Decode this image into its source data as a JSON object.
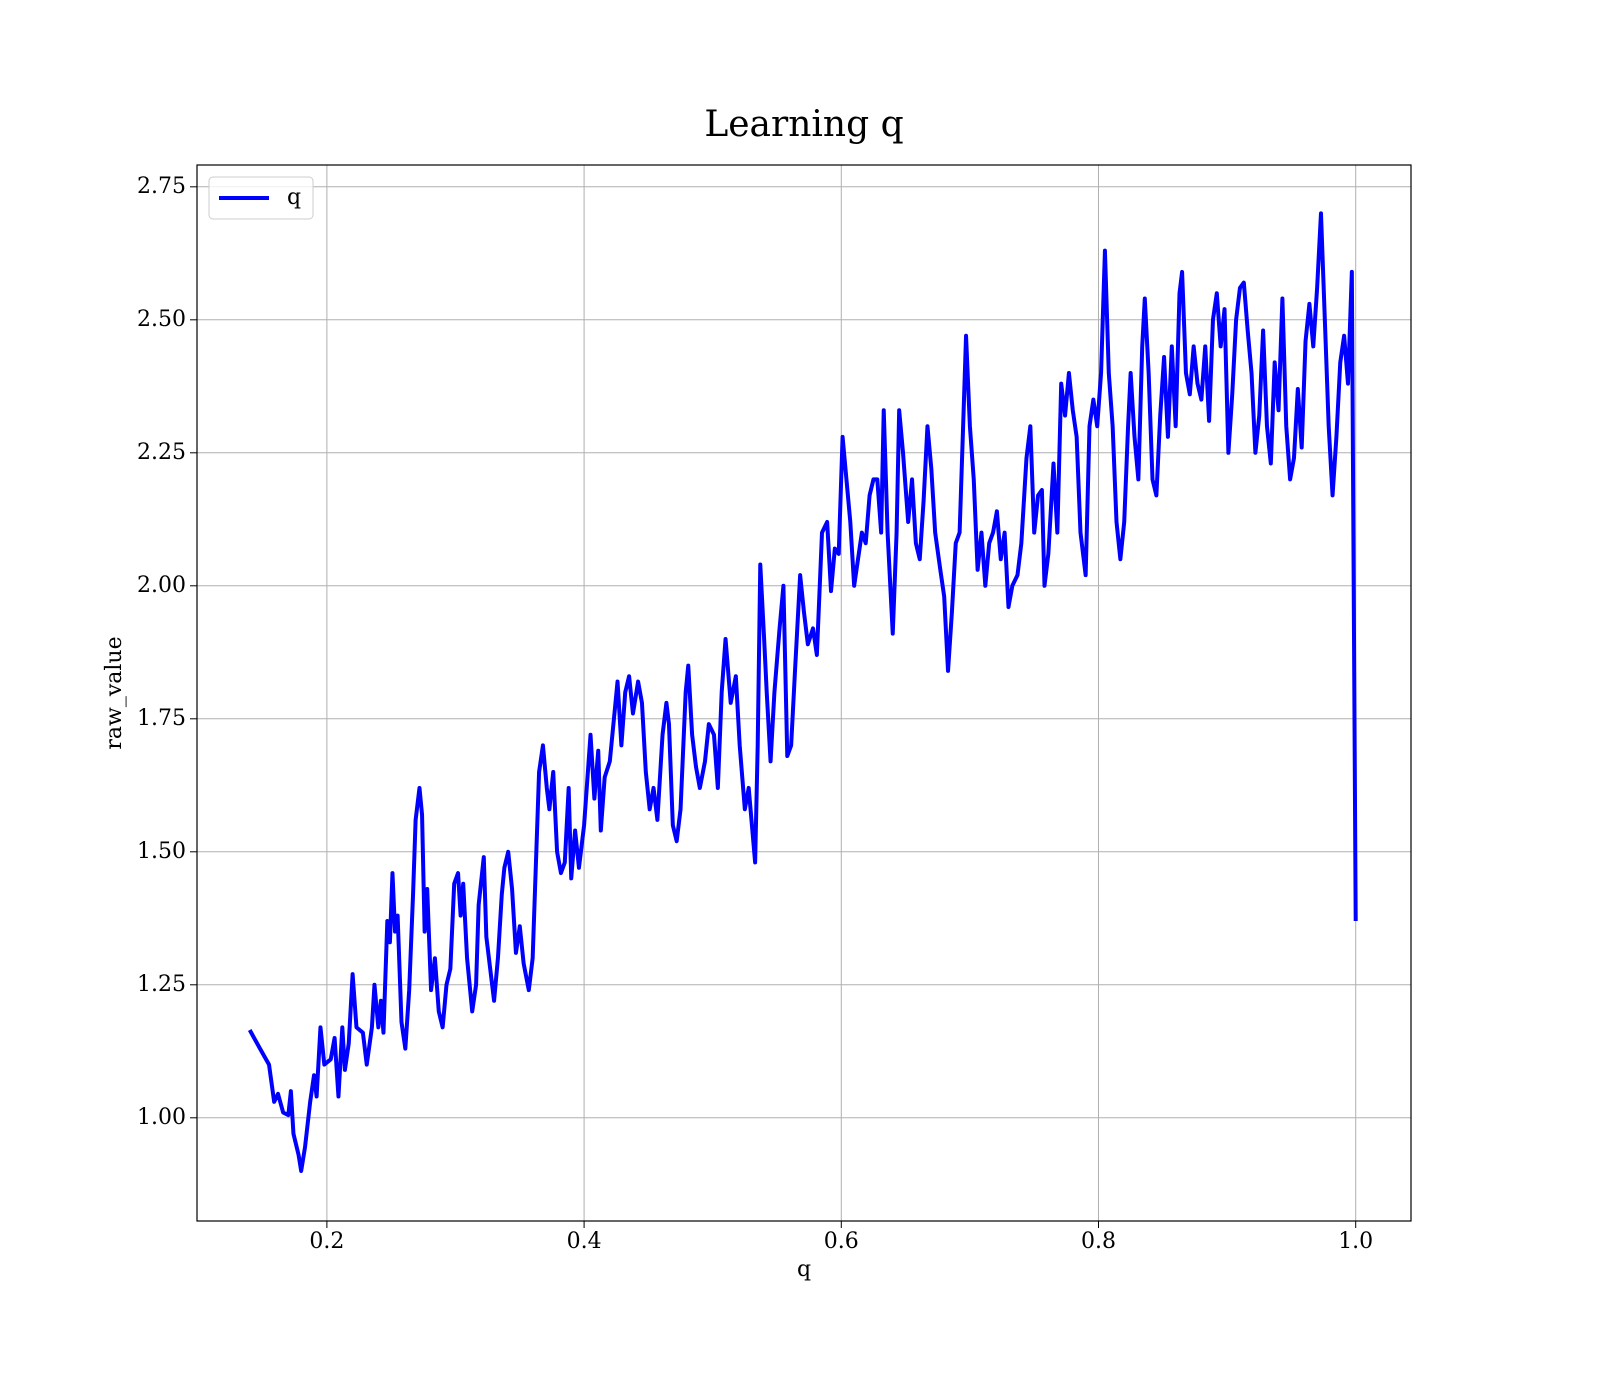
{
  "chart_data": {
    "type": "line",
    "title": "Learning q",
    "xlabel": "q",
    "ylabel": "raw_value",
    "x": [
      0.14,
      0.148,
      0.155,
      0.159,
      0.162,
      0.166,
      0.17,
      0.172,
      0.174,
      0.178,
      0.18,
      0.183,
      0.187,
      0.19,
      0.192,
      0.195,
      0.198,
      0.203,
      0.206,
      0.209,
      0.212,
      0.214,
      0.217,
      0.22,
      0.223,
      0.228,
      0.231,
      0.235,
      0.237,
      0.24,
      0.242,
      0.244,
      0.247,
      0.249,
      0.251,
      0.253,
      0.255,
      0.258,
      0.261,
      0.264,
      0.267,
      0.269,
      0.272,
      0.274,
      0.276,
      0.278,
      0.281,
      0.284,
      0.287,
      0.29,
      0.293,
      0.296,
      0.299,
      0.302,
      0.304,
      0.306,
      0.309,
      0.313,
      0.316,
      0.318,
      0.322,
      0.324,
      0.327,
      0.33,
      0.333,
      0.336,
      0.338,
      0.341,
      0.344,
      0.347,
      0.35,
      0.353,
      0.357,
      0.36,
      0.365,
      0.368,
      0.371,
      0.373,
      0.376,
      0.379,
      0.382,
      0.385,
      0.388,
      0.39,
      0.393,
      0.396,
      0.4,
      0.405,
      0.408,
      0.411,
      0.413,
      0.416,
      0.42,
      0.424,
      0.426,
      0.429,
      0.432,
      0.435,
      0.438,
      0.442,
      0.445,
      0.448,
      0.451,
      0.454,
      0.457,
      0.461,
      0.464,
      0.466,
      0.469,
      0.472,
      0.475,
      0.479,
      0.481,
      0.484,
      0.487,
      0.49,
      0.494,
      0.497,
      0.501,
      0.504,
      0.507,
      0.51,
      0.514,
      0.518,
      0.521,
      0.525,
      0.528,
      0.533,
      0.535,
      0.537,
      0.54,
      0.542,
      0.545,
      0.548,
      0.552,
      0.555,
      0.558,
      0.561,
      0.564,
      0.568,
      0.571,
      0.574,
      0.578,
      0.581,
      0.585,
      0.589,
      0.592,
      0.595,
      0.598,
      0.601,
      0.604,
      0.607,
      0.61,
      0.613,
      0.616,
      0.619,
      0.622,
      0.625,
      0.628,
      0.631,
      0.633,
      0.636,
      0.64,
      0.643,
      0.645,
      0.648,
      0.652,
      0.655,
      0.658,
      0.661,
      0.664,
      0.667,
      0.67,
      0.673,
      0.677,
      0.68,
      0.683,
      0.686,
      0.689,
      0.692,
      0.695,
      0.697,
      0.7,
      0.703,
      0.706,
      0.709,
      0.712,
      0.715,
      0.718,
      0.721,
      0.724,
      0.727,
      0.73,
      0.733,
      0.737,
      0.74,
      0.744,
      0.747,
      0.75,
      0.753,
      0.756,
      0.758,
      0.761,
      0.765,
      0.768,
      0.771,
      0.774,
      0.777,
      0.78,
      0.783,
      0.786,
      0.79,
      0.793,
      0.796,
      0.799,
      0.802,
      0.805,
      0.808,
      0.811,
      0.814,
      0.817,
      0.82,
      0.823,
      0.825,
      0.828,
      0.831,
      0.834,
      0.836,
      0.839,
      0.842,
      0.845,
      0.848,
      0.851,
      0.854,
      0.857,
      0.86,
      0.863,
      0.865,
      0.868,
      0.871,
      0.874,
      0.877,
      0.88,
      0.883,
      0.886,
      0.889,
      0.892,
      0.895,
      0.898,
      0.901,
      0.904,
      0.907,
      0.91,
      0.913,
      0.916,
      0.919,
      0.922,
      0.925,
      0.928,
      0.931,
      0.934,
      0.937,
      0.94,
      0.943,
      0.946,
      0.949,
      0.952,
      0.955,
      0.958,
      0.961,
      0.964,
      0.967,
      0.97,
      0.973,
      0.976,
      0.979,
      0.982,
      0.985,
      0.988,
      0.991,
      0.994,
      0.997,
      1.0
    ],
    "series": [
      {
        "name": "q",
        "color": "#0000ff",
        "values": [
          1.165,
          1.13,
          1.1,
          1.03,
          1.045,
          1.01,
          1.005,
          1.05,
          0.97,
          0.93,
          0.9,
          0.945,
          1.03,
          1.08,
          1.04,
          1.17,
          1.1,
          1.11,
          1.15,
          1.04,
          1.17,
          1.09,
          1.14,
          1.27,
          1.17,
          1.16,
          1.1,
          1.17,
          1.25,
          1.17,
          1.22,
          1.16,
          1.37,
          1.33,
          1.46,
          1.35,
          1.38,
          1.18,
          1.13,
          1.24,
          1.42,
          1.56,
          1.62,
          1.57,
          1.35,
          1.43,
          1.24,
          1.3,
          1.2,
          1.17,
          1.25,
          1.28,
          1.44,
          1.46,
          1.38,
          1.44,
          1.3,
          1.2,
          1.25,
          1.4,
          1.49,
          1.34,
          1.28,
          1.22,
          1.3,
          1.42,
          1.47,
          1.5,
          1.43,
          1.31,
          1.36,
          1.29,
          1.24,
          1.3,
          1.65,
          1.7,
          1.62,
          1.58,
          1.65,
          1.5,
          1.46,
          1.48,
          1.62,
          1.45,
          1.54,
          1.47,
          1.55,
          1.72,
          1.6,
          1.69,
          1.54,
          1.64,
          1.67,
          1.77,
          1.82,
          1.7,
          1.8,
          1.83,
          1.76,
          1.82,
          1.78,
          1.65,
          1.58,
          1.62,
          1.56,
          1.72,
          1.78,
          1.74,
          1.55,
          1.52,
          1.58,
          1.8,
          1.85,
          1.72,
          1.66,
          1.62,
          1.67,
          1.74,
          1.72,
          1.62,
          1.8,
          1.9,
          1.78,
          1.83,
          1.7,
          1.58,
          1.62,
          1.48,
          1.7,
          2.04,
          1.9,
          1.8,
          1.67,
          1.8,
          1.92,
          2.0,
          1.68,
          1.7,
          1.84,
          2.02,
          1.95,
          1.89,
          1.92,
          1.87,
          2.1,
          2.12,
          1.99,
          2.07,
          2.06,
          2.28,
          2.2,
          2.12,
          2.0,
          2.05,
          2.1,
          2.08,
          2.17,
          2.2,
          2.2,
          2.1,
          2.33,
          2.1,
          1.91,
          2.1,
          2.33,
          2.25,
          2.12,
          2.2,
          2.08,
          2.05,
          2.16,
          2.3,
          2.22,
          2.1,
          2.03,
          1.98,
          1.84,
          1.95,
          2.08,
          2.1,
          2.32,
          2.47,
          2.3,
          2.2,
          2.03,
          2.1,
          2.0,
          2.08,
          2.1,
          2.14,
          2.05,
          2.1,
          1.96,
          2.0,
          2.02,
          2.08,
          2.24,
          2.3,
          2.1,
          2.17,
          2.18,
          2.0,
          2.06,
          2.23,
          2.1,
          2.38,
          2.32,
          2.4,
          2.33,
          2.28,
          2.1,
          2.02,
          2.3,
          2.35,
          2.3,
          2.4,
          2.63,
          2.4,
          2.3,
          2.12,
          2.05,
          2.12,
          2.3,
          2.4,
          2.28,
          2.2,
          2.45,
          2.54,
          2.4,
          2.2,
          2.17,
          2.32,
          2.43,
          2.28,
          2.45,
          2.3,
          2.55,
          2.59,
          2.4,
          2.36,
          2.45,
          2.38,
          2.35,
          2.45,
          2.31,
          2.5,
          2.55,
          2.45,
          2.52,
          2.25,
          2.36,
          2.5,
          2.56,
          2.57,
          2.48,
          2.4,
          2.25,
          2.32,
          2.48,
          2.3,
          2.23,
          2.42,
          2.33,
          2.54,
          2.3,
          2.2,
          2.24,
          2.37,
          2.26,
          2.46,
          2.53,
          2.45,
          2.56,
          2.7,
          2.5,
          2.3,
          2.17,
          2.28,
          2.42,
          2.47,
          2.38,
          2.59,
          1.37
        ]
      }
    ],
    "xlim": [
      0.099,
      1.043
    ],
    "ylim": [
      0.806,
      2.791
    ],
    "xticks": [
      0.2,
      0.4,
      0.6,
      0.8,
      {
        "value": 1,
        "label": "1.0"
      }
    ],
    "yticks": [
      {
        "value": 1,
        "label": "1.00"
      },
      {
        "value": 1.25,
        "label": "1.25"
      },
      {
        "value": 1.5,
        "label": "1.50"
      },
      {
        "value": 1.75,
        "label": "1.75"
      },
      {
        "value": 2,
        "label": "2.00"
      },
      {
        "value": 2.25,
        "label": "2.25"
      },
      {
        "value": 2.5,
        "label": "2.50"
      },
      {
        "value": 2.75,
        "label": "2.75"
      }
    ],
    "grid": true,
    "legend": "upper-left"
  }
}
